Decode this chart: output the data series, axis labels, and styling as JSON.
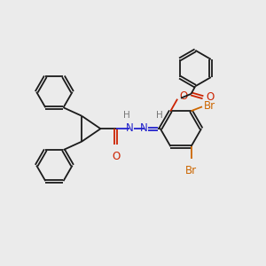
{
  "bg_color": "#ebebeb",
  "bond_color": "#1a1a1a",
  "nitrogen_color": "#2222cc",
  "oxygen_color": "#cc2200",
  "bromine_color": "#cc6600",
  "hydrogen_color": "#777777",
  "line_width": 1.3,
  "font_size": 8.5,
  "fig_width": 3.0,
  "fig_height": 3.0,
  "dpi": 100,
  "xlim": [
    -1.55,
    1.55
  ],
  "ylim": [
    -1.55,
    1.55
  ]
}
